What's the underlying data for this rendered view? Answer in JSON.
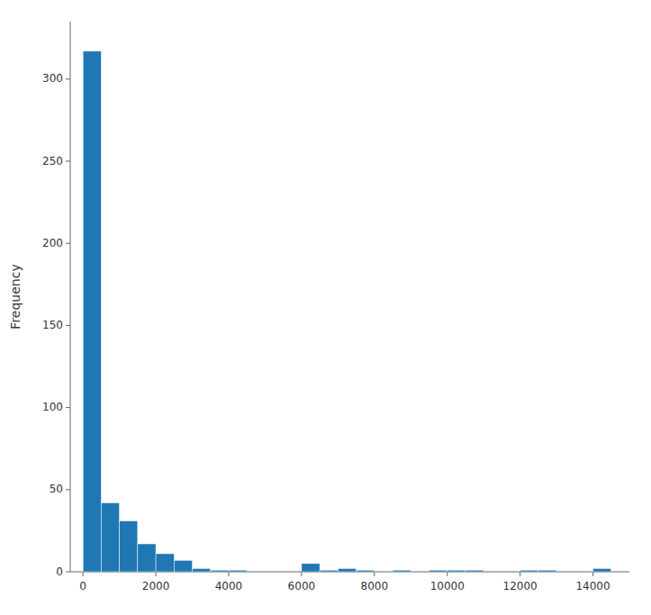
{
  "chart_data": {
    "type": "histogram",
    "ylabel": "Frequency",
    "bins": [
      0,
      500,
      1000,
      1500,
      2000,
      2500,
      3000,
      3500,
      4000,
      4500,
      5000,
      5500,
      6000,
      6500,
      7000,
      7500,
      8000,
      8500,
      9000,
      9500,
      10000,
      10500,
      11000,
      11500,
      12000,
      12500,
      13000,
      13500,
      14000,
      14500,
      15000
    ],
    "values": [
      317,
      42,
      31,
      17,
      11,
      7,
      2,
      1,
      1,
      0,
      0,
      0,
      5,
      1,
      2,
      1,
      0,
      1,
      0,
      1,
      1,
      1,
      0,
      0,
      1,
      1,
      0,
      0,
      2,
      0
    ],
    "color": "#1f77b4",
    "xlim": [
      -350,
      15000
    ],
    "ylim": [
      0,
      335
    ],
    "xticks": [
      0,
      2000,
      4000,
      6000,
      8000,
      10000,
      12000,
      14000
    ],
    "yticks": [
      0,
      50,
      100,
      150,
      200,
      250,
      300
    ]
  }
}
